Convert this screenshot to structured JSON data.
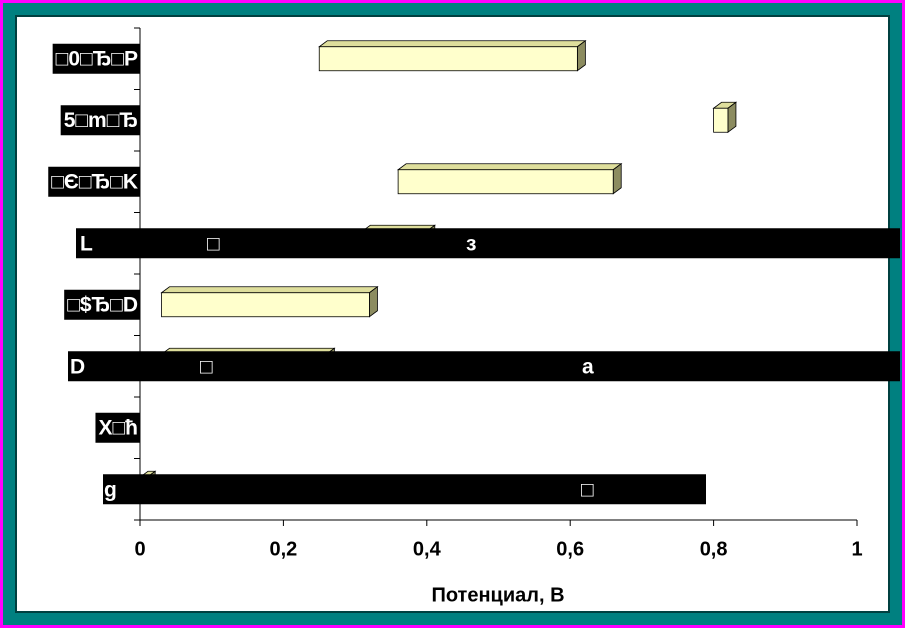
{
  "chart_data": {
    "type": "floating-bar",
    "categories": [
      "□0□Ђ□P",
      "5□m□Ђ",
      "□Є□Ђ□K",
      "L □ з",
      "□$Ђ□D",
      "D □ a",
      "X□ħ",
      "g □"
    ],
    "starts": [
      0.25,
      0.8,
      0.36,
      0.31,
      0.03,
      0.03,
      null,
      0
    ],
    "ends": [
      0.61,
      0.82,
      0.66,
      0.4,
      0.32,
      0.26,
      null,
      0.01
    ],
    "color": "#ffffcc",
    "xlabel": "Потенциал, В",
    "xlim": [
      0,
      1
    ],
    "xticks": [
      0,
      {
        "value": 0.2,
        "label": "0,2"
      },
      {
        "value": 0.4,
        "label": "0,4"
      },
      {
        "value": 0.6,
        "label": "0,6"
      },
      {
        "value": 0.8,
        "label": "0,8"
      },
      1
    ]
  }
}
